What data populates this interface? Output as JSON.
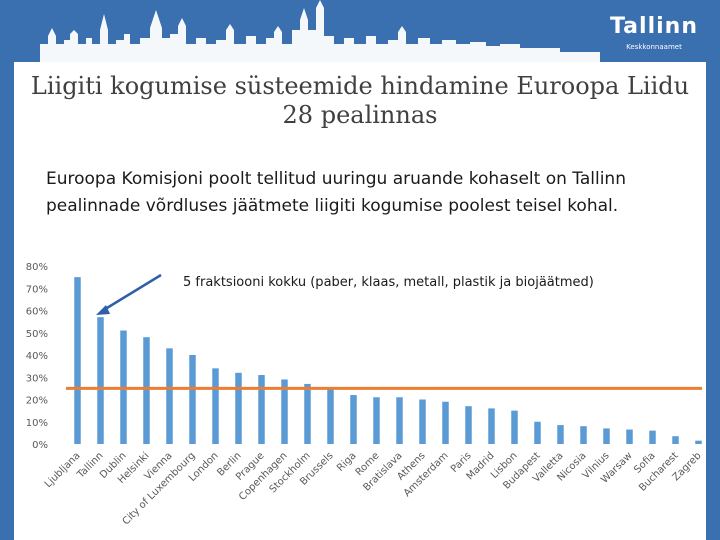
{
  "colors": {
    "header_band": "#3a6fb0",
    "bar": "#5b9bd5",
    "average_line": "#ed7d31",
    "arrow": "#2e5fa8",
    "text_dark": "#404040"
  },
  "logo": {
    "word": "Tallinn",
    "subtitle": "Keskkonnaamet"
  },
  "slide": {
    "title": "Liigiti kogumise süsteemide hindamine Euroopa Liidu 28 pealinnas",
    "subtitle": "Euroopa Komisjoni poolt tellitud uuringu aruande kohaselt on Tallinn pealinnade võrdluses jäätmete liigiti kogumise poolest teisel kohal."
  },
  "chart_data": {
    "type": "bar",
    "annotation": "5 fraktsiooni kokku (paber, klaas, metall, plastik ja biojäätmed)",
    "highlighted_category": "Tallinn",
    "categories": [
      "Ljubljana",
      "Tallinn",
      "Dublin",
      "Helsinki",
      "Vienna",
      "City of Luxembourg",
      "London",
      "Berlin",
      "Prague",
      "Copenhagen",
      "Stockholm",
      "Brussels",
      "Riga",
      "Rome",
      "Bratislava",
      "Athens",
      "Amsterdam",
      "Paris",
      "Madrid",
      "Lisbon",
      "Budapest",
      "Valletta",
      "Nicosia",
      "Vilnius",
      "Warsaw",
      "Sofia",
      "Bucharest",
      "Zagreb"
    ],
    "values": [
      75,
      57,
      51,
      48,
      43,
      40,
      34,
      32,
      31,
      29,
      27,
      25,
      22,
      21,
      21,
      20,
      19,
      17,
      16,
      15,
      10,
      8.5,
      8,
      7,
      6.5,
      6,
      3.5,
      1.5
    ],
    "reference_line": {
      "value": 25
    },
    "ylim": [
      0,
      80
    ],
    "yticks": [
      "0%",
      "10%",
      "20%",
      "30%",
      "40%",
      "50%",
      "60%",
      "70%",
      "80%"
    ],
    "grid": false,
    "legend": "none"
  }
}
